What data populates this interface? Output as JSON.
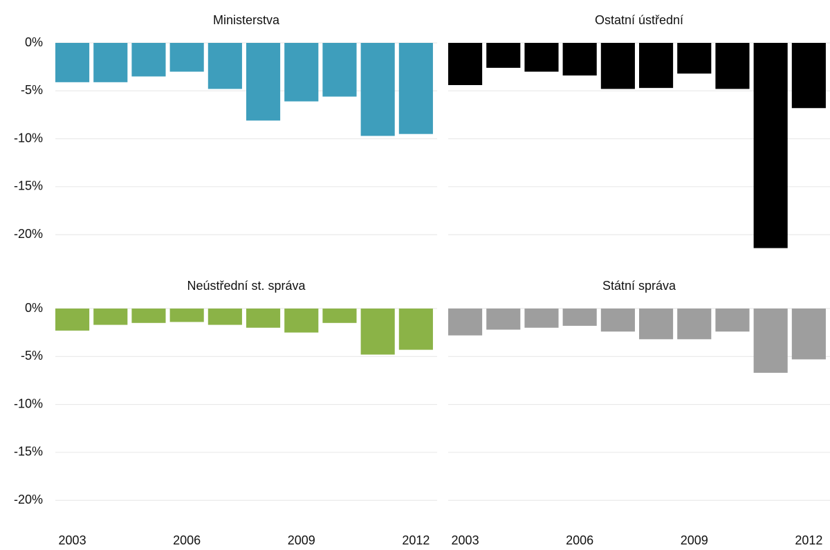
{
  "chart_data": {
    "type": "bar",
    "categories": [
      "2003",
      null,
      null,
      "2006",
      null,
      null,
      "2009",
      null,
      null,
      "2012"
    ],
    "ylim": [
      -21.5,
      0
    ],
    "yticks": [
      {
        "value": 0,
        "label": "0%"
      },
      {
        "value": -5,
        "label": "-5%"
      },
      {
        "value": -10,
        "label": "-10%"
      },
      {
        "value": -15,
        "label": "-15%"
      },
      {
        "value": -20,
        "label": "-20%"
      }
    ],
    "grid": true,
    "panels": [
      {
        "title": "Ministerstva",
        "color": "#3e9ebc",
        "values": [
          -4.1,
          -4.1,
          -3.5,
          -3.0,
          -4.8,
          -8.1,
          -6.1,
          -5.6,
          -9.7,
          -9.5
        ]
      },
      {
        "title": "Ostatní ústřední",
        "color": "#000000",
        "values": [
          -4.4,
          -2.6,
          -3.0,
          -3.4,
          -4.8,
          -4.7,
          -3.2,
          -4.8,
          -21.4,
          -6.8
        ]
      },
      {
        "title": "Neústřední st. správa",
        "color": "#8bb347",
        "values": [
          -2.3,
          -1.7,
          -1.5,
          -1.4,
          -1.7,
          -2.0,
          -2.5,
          -1.5,
          -4.8,
          -4.3
        ]
      },
      {
        "title": "Státní správa",
        "color": "#9e9e9e",
        "values": [
          -2.8,
          -2.2,
          -2.0,
          -1.8,
          -2.4,
          -3.2,
          -3.2,
          -2.4,
          -6.7,
          -5.3
        ]
      }
    ]
  }
}
